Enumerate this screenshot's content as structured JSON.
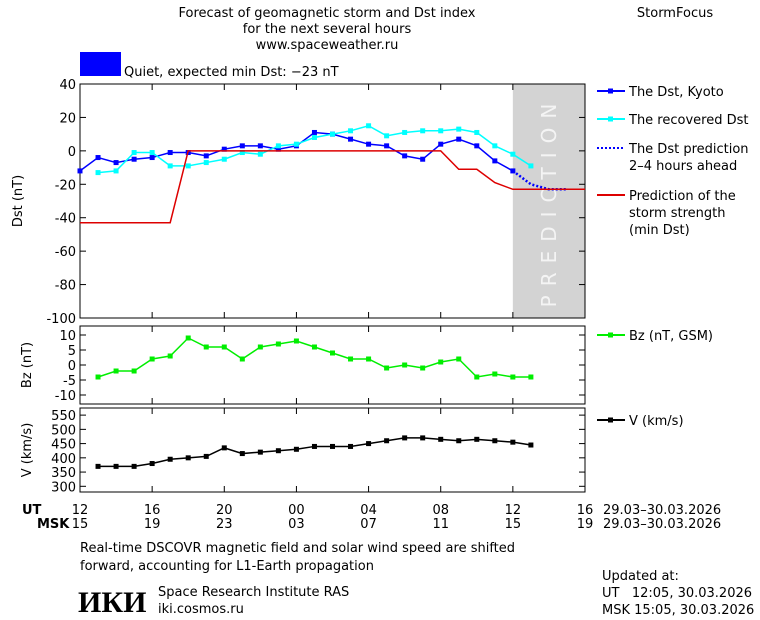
{
  "header": {
    "title_lines": [
      "Forecast of geomagnetic storm and Dst index",
      "for the next several hours",
      "www.spaceweather.ru"
    ],
    "brand": "StormFocus"
  },
  "status": {
    "color": "#0000ff",
    "text": "Quiet, expected min Dst: −23 nT"
  },
  "chart_data": [
    {
      "type": "line",
      "ylabel": "Dst (nT)",
      "xlim": [
        0,
        28
      ],
      "ylim": [
        -100,
        40
      ],
      "yticks": [
        -100,
        -80,
        -60,
        -40,
        -20,
        0,
        20,
        40
      ],
      "shade": {
        "xlim": [
          24,
          28
        ],
        "label": "PREDICTION",
        "color": "#d3d3d3"
      },
      "series": [
        {
          "name": "The Dst, Kyoto",
          "color": "#0000ff",
          "marker": "square",
          "dash": "solid",
          "x": [
            0,
            1,
            2,
            3,
            4,
            5,
            6,
            7,
            8,
            9,
            10,
            11,
            12,
            13,
            14,
            15,
            16,
            17,
            18,
            19,
            20,
            21,
            22,
            23,
            24
          ],
          "values": [
            -12,
            -4,
            -7,
            -5,
            -4,
            -1,
            -1,
            -3,
            1,
            3,
            3,
            1,
            3,
            11,
            10,
            7,
            4,
            3,
            -3,
            -5,
            4,
            7,
            3,
            -6,
            -12
          ]
        },
        {
          "name": "The recovered Dst",
          "color": "#00ffff",
          "marker": "square",
          "dash": "solid",
          "x": [
            1,
            2,
            3,
            4,
            5,
            6,
            7,
            8,
            9,
            10,
            11,
            12,
            13,
            14,
            15,
            16,
            17,
            18,
            19,
            20,
            21,
            22,
            23,
            24,
            25
          ],
          "values": [
            -13,
            -12,
            -1,
            -1,
            -9,
            -9,
            -7,
            -5,
            -1,
            -2,
            3,
            4,
            8,
            10,
            12,
            15,
            9,
            11,
            12,
            12,
            13,
            11,
            3,
            -2,
            -9
          ]
        },
        {
          "name": "The Dst prediction\n2–4 hours ahead",
          "color": "#0000ff",
          "marker": "none",
          "dash": "dotted",
          "x": [
            24,
            25,
            26,
            27
          ],
          "values": [
            -12,
            -20,
            -23,
            -23
          ]
        },
        {
          "name": "Prediction of the\nstorm strength\n(min Dst)",
          "color": "#dd0000",
          "marker": "none",
          "dash": "solid",
          "x": [
            0,
            5,
            6,
            20,
            21,
            22,
            23,
            24,
            28
          ],
          "values": [
            -43,
            -43,
            0,
            0,
            -11,
            -11,
            -19,
            -23,
            -23
          ]
        }
      ]
    },
    {
      "type": "line",
      "ylabel": "Bz (nT)",
      "xlim": [
        0,
        28
      ],
      "ylim": [
        -13,
        13
      ],
      "yticks": [
        -10,
        -5,
        0,
        5,
        10
      ],
      "series": [
        {
          "name": "Bz (nT, GSM)",
          "color": "#00ee00",
          "marker": "square",
          "dash": "solid",
          "x": [
            1,
            2,
            3,
            4,
            5,
            6,
            7,
            8,
            9,
            10,
            11,
            12,
            13,
            14,
            15,
            16,
            17,
            18,
            19,
            20,
            21,
            22,
            23,
            24,
            25
          ],
          "values": [
            -4,
            -2,
            -2,
            2,
            3,
            9,
            6,
            6,
            2,
            6,
            7,
            8,
            6,
            4,
            2,
            2,
            -1,
            0,
            -1,
            1,
            2,
            -4,
            -3,
            -4,
            -4
          ]
        }
      ]
    },
    {
      "type": "line",
      "ylabel": "V (km/s)",
      "xlim": [
        0,
        28
      ],
      "ylim": [
        280,
        575
      ],
      "yticks": [
        300,
        350,
        400,
        450,
        500,
        550
      ],
      "series": [
        {
          "name": "V (km/s)",
          "color": "#000000",
          "marker": "square",
          "dash": "solid",
          "x": [
            1,
            2,
            3,
            4,
            5,
            6,
            7,
            8,
            9,
            10,
            11,
            12,
            13,
            14,
            15,
            16,
            17,
            18,
            19,
            20,
            21,
            22,
            23,
            24,
            25
          ],
          "values": [
            370,
            370,
            370,
            380,
            395,
            400,
            405,
            435,
            415,
            420,
            425,
            430,
            440,
            440,
            440,
            450,
            460,
            470,
            470,
            465,
            460,
            465,
            460,
            455,
            445
          ]
        }
      ],
      "xrow_ut": "UT",
      "xrow_msk": "MSK",
      "date_ut": "29.03–30.03.2026",
      "date_msk": "29.03–30.03.2026",
      "xticks": [
        {
          "value": 0,
          "label": "12"
        },
        {
          "value": 4,
          "label": "16"
        },
        {
          "value": 8,
          "label": "20"
        },
        {
          "value": 12,
          "label": "00"
        },
        {
          "value": 16,
          "label": "04"
        },
        {
          "value": 20,
          "label": "08"
        },
        {
          "value": 24,
          "label": "12"
        },
        {
          "value": 28,
          "label": "16"
        }
      ],
      "xticks_msk": [
        {
          "value": 0,
          "label": "15"
        },
        {
          "value": 4,
          "label": "19"
        },
        {
          "value": 8,
          "label": "23"
        },
        {
          "value": 12,
          "label": "03"
        },
        {
          "value": 16,
          "label": "07"
        },
        {
          "value": 20,
          "label": "11"
        },
        {
          "value": 24,
          "label": "15"
        },
        {
          "value": 28,
          "label": "19"
        }
      ]
    }
  ],
  "footer": {
    "note_lines": [
      "Real-time DSCOVR magnetic field and solar wind speed are shifted",
      "forward, accounting for L1-Earth propagation"
    ],
    "logo": "ИКИ",
    "institute": "Space Research Institute RAS",
    "site": "iki.cosmos.ru",
    "updated_title": "Updated at:",
    "updated_ut": "UT   12:05, 30.03.2026",
    "updated_msk": "MSK 15:05, 30.03.2026"
  }
}
